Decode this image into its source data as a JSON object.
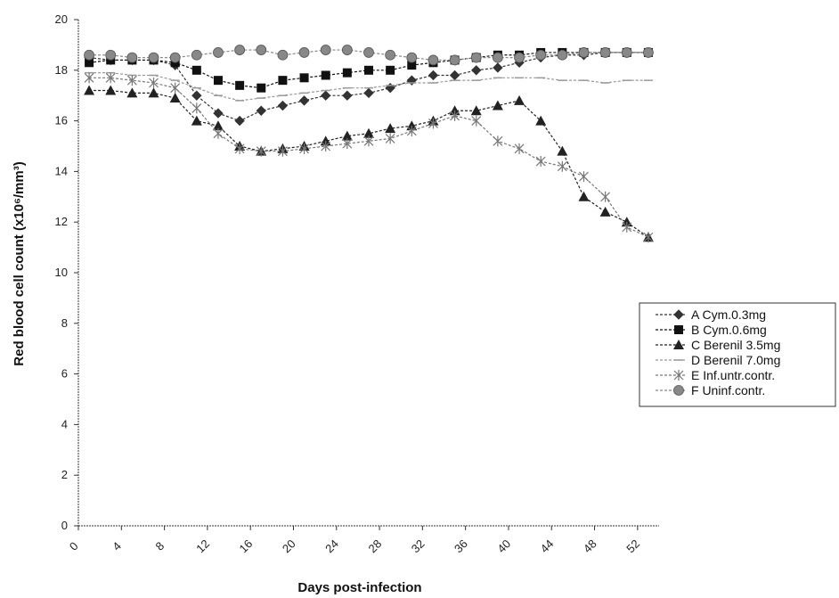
{
  "chart_data": {
    "type": "line",
    "title": "",
    "xlabel": "Days post-infection",
    "ylabel": "Red blood cell count (x10⁶/mm³)",
    "xlim": [
      0,
      54
    ],
    "ylim": [
      0,
      20
    ],
    "x_ticks": [
      "0",
      "4",
      "8",
      "12",
      "16",
      "20",
      "24",
      "28",
      "32",
      "36",
      "40",
      "44",
      "48",
      "52"
    ],
    "y_ticks": [
      "0",
      "2",
      "4",
      "6",
      "8",
      "10",
      "12",
      "14",
      "16",
      "18",
      "20"
    ],
    "x_tick_values": [
      0,
      4,
      8,
      12,
      16,
      20,
      24,
      28,
      32,
      36,
      40,
      44,
      48,
      52
    ],
    "y_tick_values": [
      0,
      2,
      4,
      6,
      8,
      10,
      12,
      14,
      16,
      18,
      20
    ],
    "legend_position": "right",
    "series": [
      {
        "name": "A Cym.0.3mg",
        "marker": "diamond",
        "color": "#333333",
        "x": [
          1,
          3,
          5,
          7,
          9,
          11,
          13,
          15,
          17,
          19,
          21,
          23,
          25,
          27,
          29,
          31,
          33,
          35,
          37,
          39,
          41,
          43,
          45,
          47,
          49,
          51,
          53
        ],
        "y": [
          18.5,
          18.4,
          18.4,
          18.4,
          18.2,
          17.0,
          16.3,
          16.0,
          16.4,
          16.6,
          16.8,
          17.0,
          17.0,
          17.1,
          17.3,
          17.6,
          17.8,
          17.8,
          18.0,
          18.1,
          18.3,
          18.5,
          18.6,
          18.6,
          18.7,
          18.7,
          18.7
        ]
      },
      {
        "name": "B Cym.0.6mg",
        "marker": "square",
        "color": "#111111",
        "x": [
          1,
          3,
          5,
          7,
          9,
          11,
          13,
          15,
          17,
          19,
          21,
          23,
          25,
          27,
          29,
          31,
          33,
          35,
          37,
          39,
          41,
          43,
          45,
          47,
          49,
          51,
          53
        ],
        "y": [
          18.3,
          18.4,
          18.4,
          18.4,
          18.3,
          18.0,
          17.6,
          17.4,
          17.3,
          17.6,
          17.7,
          17.8,
          17.9,
          18.0,
          18.0,
          18.2,
          18.3,
          18.4,
          18.5,
          18.6,
          18.6,
          18.7,
          18.7,
          18.7,
          18.7,
          18.7,
          18.7
        ]
      },
      {
        "name": "C Berenil 3.5mg",
        "marker": "triangle",
        "color": "#222222",
        "x": [
          1,
          3,
          5,
          7,
          9,
          11,
          13,
          15,
          17,
          19,
          21,
          23,
          25,
          27,
          29,
          31,
          33,
          35,
          37,
          39,
          41,
          43,
          45,
          47,
          49,
          51,
          53
        ],
        "y": [
          17.2,
          17.2,
          17.1,
          17.1,
          16.9,
          16.0,
          15.8,
          15.0,
          14.8,
          14.9,
          15.0,
          15.2,
          15.4,
          15.5,
          15.7,
          15.8,
          16.0,
          16.4,
          16.4,
          16.6,
          16.8,
          16.0,
          14.8,
          13.0,
          12.4,
          12.0,
          11.4
        ]
      },
      {
        "name": "D Berenil 7.0mg",
        "marker": "dash",
        "color": "#999999",
        "x": [
          1,
          3,
          5,
          7,
          9,
          11,
          13,
          15,
          17,
          19,
          21,
          23,
          25,
          27,
          29,
          31,
          33,
          35,
          37,
          39,
          41,
          43,
          45,
          47,
          49,
          51,
          53
        ],
        "y": [
          17.9,
          17.9,
          17.8,
          17.8,
          17.6,
          17.3,
          17.0,
          16.8,
          16.9,
          17.0,
          17.1,
          17.2,
          17.3,
          17.3,
          17.4,
          17.5,
          17.5,
          17.6,
          17.6,
          17.7,
          17.7,
          17.7,
          17.6,
          17.6,
          17.5,
          17.6,
          17.6
        ]
      },
      {
        "name": "E Inf.untr.contr.",
        "marker": "star",
        "color": "#777777",
        "x": [
          1,
          3,
          5,
          7,
          9,
          11,
          13,
          15,
          17,
          19,
          21,
          23,
          25,
          27,
          29,
          31,
          33,
          35,
          37,
          39,
          41,
          43,
          45,
          47,
          49,
          51,
          53
        ],
        "y": [
          17.7,
          17.7,
          17.6,
          17.5,
          17.3,
          16.5,
          15.5,
          14.9,
          14.8,
          14.8,
          14.9,
          15.0,
          15.1,
          15.2,
          15.3,
          15.6,
          15.9,
          16.2,
          16.0,
          15.2,
          14.9,
          14.4,
          14.2,
          13.8,
          13.0,
          11.8,
          11.4
        ]
      },
      {
        "name": "F Uninf.contr.",
        "marker": "circle",
        "color": "#888888",
        "x": [
          1,
          3,
          5,
          7,
          9,
          11,
          13,
          15,
          17,
          19,
          21,
          23,
          25,
          27,
          29,
          31,
          33,
          35,
          37,
          39,
          41,
          43,
          45,
          47,
          49,
          51,
          53
        ],
        "y": [
          18.6,
          18.6,
          18.5,
          18.5,
          18.5,
          18.6,
          18.7,
          18.8,
          18.8,
          18.6,
          18.7,
          18.8,
          18.8,
          18.7,
          18.6,
          18.5,
          18.4,
          18.4,
          18.5,
          18.5,
          18.5,
          18.6,
          18.6,
          18.7,
          18.7,
          18.7,
          18.7
        ]
      }
    ]
  }
}
